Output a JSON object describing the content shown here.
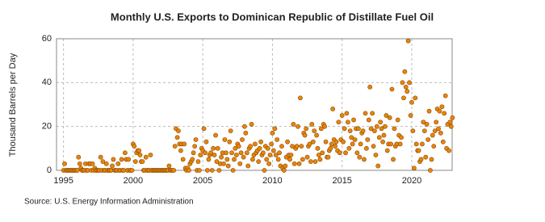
{
  "chart_data": {
    "type": "scatter",
    "title": "Monthly U.S. Exports to Dominican Republic of Distillate Fuel Oil",
    "y_label": "Thousand Barrels per Day",
    "source": "Source: U.S. Energy Information Administration",
    "color": "#e8850c",
    "grid": true,
    "xlim": [
      1994.5,
      2022.9
    ],
    "xticks": [
      1995,
      2000,
      2005,
      2010,
      2015,
      2020
    ],
    "ylim": [
      0,
      60
    ],
    "yticks": [
      0,
      20,
      40,
      60
    ],
    "x": [
      1995,
      1995.08,
      1995.17,
      1995.25,
      1995.33,
      1995.42,
      1995.5,
      1995.58,
      1995.67,
      1995.75,
      1995.83,
      1995.92,
      1996,
      1996.08,
      1996.17,
      1996.25,
      1996.33,
      1996.42,
      1996.5,
      1996.58,
      1996.67,
      1996.75,
      1996.83,
      1996.92,
      1997,
      1997.08,
      1997.17,
      1997.25,
      1997.33,
      1997.42,
      1997.5,
      1997.58,
      1997.67,
      1997.75,
      1997.83,
      1997.92,
      1998,
      1998.08,
      1998.17,
      1998.25,
      1998.33,
      1998.42,
      1998.5,
      1998.58,
      1998.67,
      1998.75,
      1998.83,
      1998.92,
      1999,
      1999.08,
      1999.17,
      1999.25,
      1999.33,
      1999.42,
      1999.5,
      1999.58,
      1999.67,
      1999.75,
      1999.83,
      1999.92,
      2000,
      2000.08,
      2000.17,
      2000.25,
      2000.33,
      2000.42,
      2000.5,
      2000.58,
      2000.67,
      2000.75,
      2000.83,
      2000.92,
      2001,
      2001.08,
      2001.17,
      2001.25,
      2001.33,
      2001.42,
      2001.5,
      2001.58,
      2001.67,
      2001.75,
      2001.83,
      2001.92,
      2002,
      2002.08,
      2002.17,
      2002.25,
      2002.33,
      2002.42,
      2002.5,
      2002.58,
      2002.67,
      2002.75,
      2002.83,
      2002.92,
      2003,
      2003.08,
      2003.17,
      2003.25,
      2003.33,
      2003.42,
      2003.5,
      2003.58,
      2003.67,
      2003.75,
      2003.83,
      2003.92,
      2004,
      2004.08,
      2004.17,
      2004.25,
      2004.33,
      2004.42,
      2004.5,
      2004.58,
      2004.67,
      2004.75,
      2004.83,
      2004.92,
      2005,
      2005.08,
      2005.17,
      2005.25,
      2005.33,
      2005.42,
      2005.5,
      2005.58,
      2005.67,
      2005.75,
      2005.83,
      2005.92,
      2006,
      2006.08,
      2006.17,
      2006.25,
      2006.33,
      2006.42,
      2006.5,
      2006.58,
      2006.67,
      2006.75,
      2006.83,
      2006.92,
      2007,
      2007.08,
      2007.17,
      2007.25,
      2007.33,
      2007.42,
      2007.5,
      2007.58,
      2007.67,
      2007.75,
      2007.83,
      2007.92,
      2008,
      2008.08,
      2008.17,
      2008.25,
      2008.33,
      2008.42,
      2008.5,
      2008.58,
      2008.67,
      2008.75,
      2008.83,
      2008.92,
      2009,
      2009.08,
      2009.17,
      2009.25,
      2009.33,
      2009.42,
      2009.5,
      2009.58,
      2009.67,
      2009.75,
      2009.83,
      2009.92,
      2010,
      2010.08,
      2010.17,
      2010.25,
      2010.33,
      2010.42,
      2010.5,
      2010.58,
      2010.67,
      2010.75,
      2010.83,
      2010.92,
      2011,
      2011.08,
      2011.17,
      2011.25,
      2011.33,
      2011.42,
      2011.5,
      2011.58,
      2011.67,
      2011.75,
      2011.83,
      2011.92,
      2012,
      2012.08,
      2012.17,
      2012.25,
      2012.33,
      2012.42,
      2012.5,
      2012.58,
      2012.67,
      2012.75,
      2012.83,
      2012.92,
      2013,
      2013.08,
      2013.17,
      2013.25,
      2013.33,
      2013.42,
      2013.5,
      2013.58,
      2013.67,
      2013.75,
      2013.83,
      2013.92,
      2014,
      2014.08,
      2014.17,
      2014.25,
      2014.33,
      2014.42,
      2014.5,
      2014.58,
      2014.67,
      2014.75,
      2014.83,
      2014.92,
      2015,
      2015.08,
      2015.17,
      2015.25,
      2015.33,
      2015.42,
      2015.5,
      2015.58,
      2015.67,
      2015.75,
      2015.83,
      2015.92,
      2016,
      2016.08,
      2016.17,
      2016.25,
      2016.33,
      2016.42,
      2016.5,
      2016.58,
      2016.67,
      2016.75,
      2016.83,
      2016.92,
      2017,
      2017.08,
      2017.17,
      2017.25,
      2017.33,
      2017.42,
      2017.5,
      2017.58,
      2017.67,
      2017.75,
      2017.83,
      2017.92,
      2018,
      2018.08,
      2018.17,
      2018.25,
      2018.33,
      2018.42,
      2018.5,
      2018.58,
      2018.67,
      2018.75,
      2018.83,
      2018.92,
      2019,
      2019.08,
      2019.17,
      2019.25,
      2019.33,
      2019.42,
      2019.5,
      2019.58,
      2019.67,
      2019.75,
      2019.83,
      2019.92,
      2020,
      2020.08,
      2020.17,
      2020.25,
      2020.33,
      2020.42,
      2020.5,
      2020.58,
      2020.67,
      2020.75,
      2020.83,
      2020.92,
      2021,
      2021.08,
      2021.17,
      2021.25,
      2021.33,
      2021.42,
      2021.5,
      2021.58,
      2021.67,
      2021.75,
      2021.83,
      2021.92,
      2022,
      2022.08,
      2022.17,
      2022.25,
      2022.33,
      2022.42,
      2022.5,
      2022.58,
      2022.67,
      2022.75,
      2022.83,
      2022.92
    ],
    "values": [
      0,
      3,
      0,
      0,
      0,
      0,
      0,
      0,
      0,
      0,
      0,
      0,
      0,
      6,
      3,
      1,
      0,
      0,
      0,
      3,
      0,
      0,
      3,
      3,
      0,
      3,
      0,
      1,
      0,
      0,
      0,
      0,
      6,
      0,
      4,
      0,
      0,
      3,
      0,
      0,
      0,
      0,
      2,
      5,
      0,
      0,
      0,
      3,
      0,
      0,
      5,
      0,
      0,
      8,
      5,
      0,
      5,
      0,
      0,
      0,
      12,
      11,
      4,
      8,
      9,
      9,
      7,
      4,
      4,
      0,
      0,
      6,
      0,
      0,
      0,
      7,
      0,
      0,
      0,
      0,
      0,
      0,
      0,
      0,
      0,
      0,
      0,
      0,
      0,
      0,
      0,
      2,
      0,
      0,
      0,
      0,
      11,
      19,
      15,
      18,
      12,
      9,
      12,
      5,
      12,
      1,
      0,
      1,
      0,
      3,
      4,
      5,
      8,
      11,
      14,
      0,
      4,
      0,
      7,
      10,
      9,
      19,
      8,
      13,
      0,
      5,
      7,
      8,
      0,
      10,
      7,
      16,
      4,
      10,
      0,
      3,
      6,
      8,
      3,
      14,
      8,
      5,
      2,
      13,
      18,
      8,
      0,
      5,
      10,
      7,
      12,
      11,
      3,
      8,
      14,
      6,
      20,
      17,
      8,
      2,
      10,
      11,
      21,
      5,
      7,
      12,
      8,
      9,
      4,
      10,
      13,
      7,
      8,
      0,
      11,
      5,
      10,
      3,
      7,
      12,
      17,
      9,
      19,
      7,
      14,
      5,
      8,
      2,
      11,
      1,
      0,
      2,
      6,
      13,
      7,
      5,
      7,
      11,
      21,
      3,
      10,
      11,
      20,
      3,
      33,
      11,
      5,
      17,
      16,
      19,
      6,
      11,
      12,
      4,
      21,
      13,
      18,
      4,
      16,
      10,
      7,
      5,
      19,
      8,
      21,
      20,
      13,
      6,
      6,
      9,
      10,
      12,
      28,
      14,
      11,
      13,
      9,
      22,
      8,
      14,
      25,
      13,
      19,
      8,
      26,
      22,
      10,
      18,
      15,
      12,
      23,
      14,
      19,
      8,
      19,
      6,
      12,
      17,
      18,
      5,
      26,
      10,
      14,
      23,
      38,
      19,
      26,
      11,
      18,
      7,
      20,
      2,
      15,
      22,
      19,
      13,
      16,
      20,
      25,
      9,
      12,
      24,
      12,
      37,
      5,
      19,
      11,
      12,
      23,
      16,
      12,
      15,
      40,
      33,
      45,
      38,
      36,
      59,
      40,
      25,
      31,
      18,
      1,
      33,
      12,
      9,
      9,
      4,
      5,
      12,
      22,
      18,
      6,
      21,
      14,
      27,
      0,
      5,
      16,
      11,
      18,
      22,
      28,
      19,
      27,
      17,
      29,
      13,
      26,
      34,
      10,
      21,
      9,
      22,
      20,
      24
    ]
  }
}
